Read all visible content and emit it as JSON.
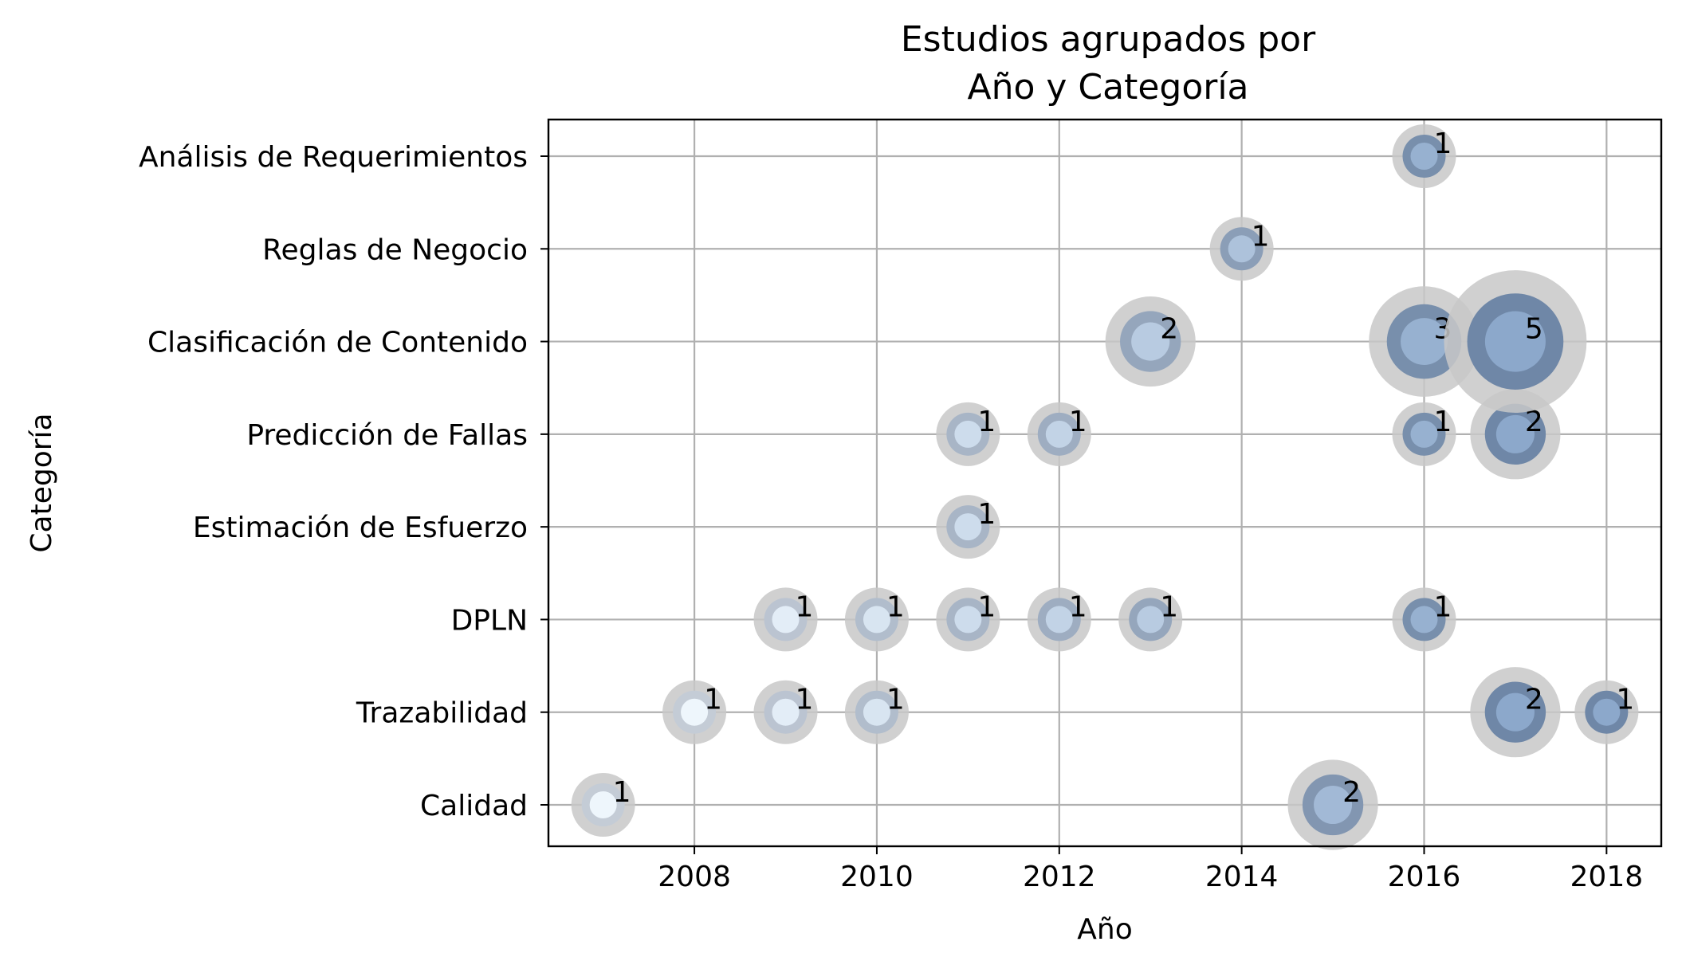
{
  "chart_data": {
    "type": "scatter",
    "title_lines": [
      "Estudios agrupados por",
      "Año y Categoría"
    ],
    "xlabel": "Año",
    "ylabel": "Categoría",
    "xlim": [
      2006.4,
      2018.6
    ],
    "x_ticks": [
      2008,
      2010,
      2012,
      2014,
      2016,
      2018
    ],
    "categories": [
      "Calidad ",
      "Trazabilidad",
      "DPLN",
      "Estimación de Esfuerzo",
      "Predicción de Fallas",
      "Clasificación de Contenido",
      "Reglas de Negocio",
      "Análisis de Requerimientos"
    ],
    "grid": true,
    "points": [
      {
        "year": 2007,
        "category": "Calidad ",
        "count": 1
      },
      {
        "year": 2015,
        "category": "Calidad ",
        "count": 2
      },
      {
        "year": 2008,
        "category": "Trazabilidad",
        "count": 1
      },
      {
        "year": 2009,
        "category": "Trazabilidad",
        "count": 1
      },
      {
        "year": 2010,
        "category": "Trazabilidad",
        "count": 1
      },
      {
        "year": 2017,
        "category": "Trazabilidad",
        "count": 2
      },
      {
        "year": 2018,
        "category": "Trazabilidad",
        "count": 1
      },
      {
        "year": 2009,
        "category": "DPLN",
        "count": 1
      },
      {
        "year": 2010,
        "category": "DPLN",
        "count": 1
      },
      {
        "year": 2011,
        "category": "DPLN",
        "count": 1
      },
      {
        "year": 2012,
        "category": "DPLN",
        "count": 1
      },
      {
        "year": 2013,
        "category": "DPLN",
        "count": 1
      },
      {
        "year": 2016,
        "category": "DPLN",
        "count": 1
      },
      {
        "year": 2011,
        "category": "Estimación de Esfuerzo",
        "count": 1
      },
      {
        "year": 2011,
        "category": "Predicción de Fallas",
        "count": 1
      },
      {
        "year": 2012,
        "category": "Predicción de Fallas",
        "count": 1
      },
      {
        "year": 2016,
        "category": "Predicción de Fallas",
        "count": 1
      },
      {
        "year": 2017,
        "category": "Predicción de Fallas",
        "count": 2
      },
      {
        "year": 2013,
        "category": "Clasificación de Contenido",
        "count": 2
      },
      {
        "year": 2016,
        "category": "Clasificación de Contenido",
        "count": 3
      },
      {
        "year": 2017,
        "category": "Clasificación de Contenido",
        "count": 5
      },
      {
        "year": 2014,
        "category": "Reglas de Negocio",
        "count": 1
      },
      {
        "year": 2016,
        "category": "Análisis de Requerimientos",
        "count": 1
      }
    ],
    "colors": {
      "halo": "#c8c8c8",
      "ring_light": "#c4ccd6",
      "ring_dark": "#6f87a7",
      "fill_light": "#eef6fc",
      "fill_dark": "#8ca8cb"
    }
  }
}
